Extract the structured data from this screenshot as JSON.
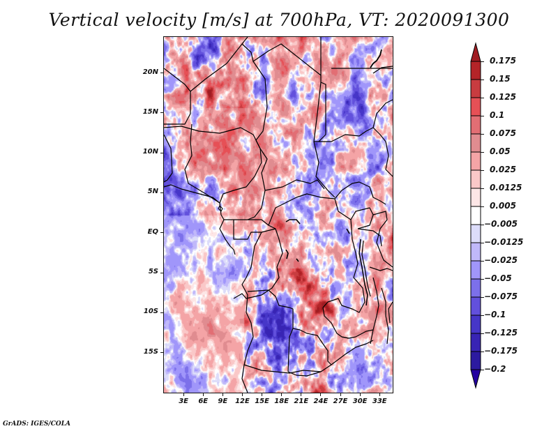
{
  "title": "Vertical velocity [m/s] at 700hPa, VT: 2020091300",
  "credit": "GrADS: IGES/COLA",
  "map": {
    "variable": "Vertical velocity",
    "units": "m/s",
    "level": "700hPa",
    "valid_time": "2020091300",
    "lat_range": [
      -20,
      24.5
    ],
    "lon_range": [
      0,
      35
    ],
    "lat_labels": [
      {
        "label": "20N",
        "value": 20
      },
      {
        "label": "15N",
        "value": 15
      },
      {
        "label": "10N",
        "value": 10
      },
      {
        "label": "5N",
        "value": 5
      },
      {
        "label": "EQ",
        "value": 0
      },
      {
        "label": "5S",
        "value": -5
      },
      {
        "label": "10S",
        "value": -10
      },
      {
        "label": "15S",
        "value": -15
      }
    ],
    "lon_labels": [
      {
        "label": "3E",
        "value": 3
      },
      {
        "label": "6E",
        "value": 6
      },
      {
        "label": "9E",
        "value": 9
      },
      {
        "label": "12E",
        "value": 12
      },
      {
        "label": "15E",
        "value": 15
      },
      {
        "label": "18E",
        "value": 18
      },
      {
        "label": "21E",
        "value": 21
      },
      {
        "label": "24E",
        "value": 24
      },
      {
        "label": "27E",
        "value": 27
      },
      {
        "label": "30E",
        "value": 30
      },
      {
        "label": "33E",
        "value": 33
      }
    ]
  },
  "colorbar": {
    "labels": [
      "0.175",
      "0.15",
      "0.125",
      "0.1",
      "0.075",
      "0.05",
      "0.025",
      "0.0125",
      "0.005",
      "-0.005",
      "-0.0125",
      "-0.025",
      "-0.05",
      "-0.075",
      "-0.1",
      "-0.125",
      "-0.175",
      "-0.2"
    ],
    "levels": [
      0.175,
      0.15,
      0.125,
      0.1,
      0.075,
      0.05,
      0.025,
      0.0125,
      0.005,
      -0.005,
      -0.0125,
      -0.025,
      -0.05,
      -0.075,
      -0.1,
      -0.125,
      -0.175,
      -0.2
    ],
    "colors_top_to_bottom": [
      "#a01c22",
      "#b42428",
      "#c83c40",
      "#e65056",
      "#e26e74",
      "#e08c90",
      "#f4a4a6",
      "#fac8c8",
      "#fde6e6",
      "#ffffff",
      "#dcdcfa",
      "#c0b8fa",
      "#a096fa",
      "#7c70ea",
      "#6250dc",
      "#4636c8",
      "#3824b4",
      "#2c1aa0",
      "#1e0aa0"
    ],
    "top_arrow_color": "#a01c22",
    "bottom_arrow_color": "#2400a0"
  },
  "chart_data": {
    "type": "heatmap",
    "title": "Vertical velocity [m/s] at 700hPa, VT: 2020091300",
    "xlabel": "",
    "ylabel": "",
    "x_ticks": [
      "3E",
      "6E",
      "9E",
      "12E",
      "15E",
      "18E",
      "21E",
      "24E",
      "27E",
      "30E",
      "33E"
    ],
    "y_ticks": [
      "20N",
      "15N",
      "10N",
      "5N",
      "EQ",
      "5S",
      "10S",
      "15S"
    ],
    "xlim": [
      0,
      35
    ],
    "ylim": [
      -20,
      24.5
    ],
    "color_levels": [
      -0.2,
      -0.175,
      -0.125,
      -0.1,
      -0.075,
      -0.05,
      -0.025,
      -0.0125,
      -0.005,
      0.005,
      0.0125,
      0.025,
      0.05,
      0.075,
      0.1,
      0.125,
      0.15,
      0.175
    ],
    "legend": "colorbar right"
  }
}
